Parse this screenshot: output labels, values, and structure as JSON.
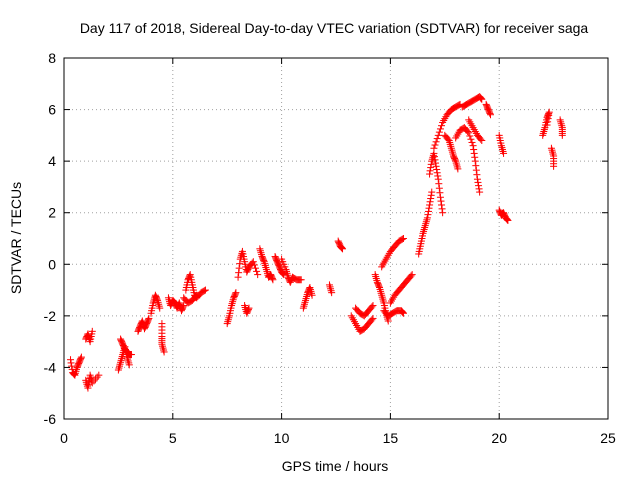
{
  "chart_data": {
    "type": "scatter",
    "title": "Day 117 of 2018, Sidereal Day-to-day VTEC variation (SDTVAR) for receiver saga",
    "xlabel": "GPS time / hours",
    "ylabel": "SDTVAR / TECUs",
    "xlim": [
      0,
      25
    ],
    "ylim": [
      -6,
      8
    ],
    "xticks": [
      "0",
      "5",
      "10",
      "15",
      "20",
      "25"
    ],
    "yticks": [
      "-6",
      "-4",
      "-2",
      "0",
      "2",
      "4",
      "6",
      "8"
    ],
    "grid": true,
    "marker": "+",
    "color": "#ff0000",
    "series": [
      {
        "name": "",
        "segments": [
          [
            [
              0.3,
              -3.7
            ],
            [
              0.4,
              -4.2
            ],
            [
              0.5,
              -4.3
            ],
            [
              0.6,
              -4.0
            ],
            [
              0.7,
              -3.8
            ],
            [
              0.8,
              -3.6
            ]
          ],
          [
            [
              1.0,
              -2.9
            ],
            [
              1.1,
              -2.7
            ],
            [
              1.2,
              -3.0
            ],
            [
              1.3,
              -2.6
            ]
          ],
          [
            [
              1.0,
              -4.5
            ],
            [
              1.1,
              -4.8
            ],
            [
              1.2,
              -4.3
            ],
            [
              1.3,
              -4.6
            ],
            [
              1.6,
              -4.3
            ]
          ],
          [
            [
              2.5,
              -4.1
            ],
            [
              2.6,
              -3.8
            ],
            [
              2.7,
              -3.5
            ],
            [
              2.8,
              -3.2
            ],
            [
              2.9,
              -3.6
            ],
            [
              3.0,
              -3.9
            ]
          ],
          [
            [
              2.6,
              -2.9
            ],
            [
              2.7,
              -3.1
            ],
            [
              2.8,
              -3.3
            ],
            [
              2.9,
              -3.4
            ],
            [
              3.0,
              -3.5
            ],
            [
              3.1,
              -3.5
            ]
          ],
          [
            [
              3.4,
              -2.6
            ],
            [
              3.5,
              -2.4
            ],
            [
              3.6,
              -2.2
            ],
            [
              3.7,
              -2.5
            ],
            [
              3.8,
              -2.3
            ],
            [
              3.9,
              -2.1
            ]
          ],
          [
            [
              4.0,
              -1.9
            ],
            [
              4.1,
              -1.5
            ],
            [
              4.2,
              -1.2
            ],
            [
              4.3,
              -1.4
            ],
            [
              4.4,
              -1.7
            ]
          ],
          [
            [
              4.5,
              -2.3
            ],
            [
              4.5,
              -2.8
            ],
            [
              4.5,
              -3.1
            ],
            [
              4.6,
              -3.4
            ]
          ],
          [
            [
              4.8,
              -1.3
            ],
            [
              4.9,
              -1.6
            ],
            [
              5.0,
              -1.4
            ],
            [
              5.1,
              -1.5
            ],
            [
              5.2,
              -1.7
            ],
            [
              5.3,
              -1.5
            ],
            [
              5.4,
              -1.8
            ],
            [
              5.5,
              -1.6
            ]
          ],
          [
            [
              5.6,
              -1.0
            ],
            [
              5.7,
              -0.6
            ],
            [
              5.8,
              -0.4
            ],
            [
              5.9,
              -0.8
            ],
            [
              6.0,
              -1.2
            ],
            [
              6.1,
              -1.3
            ],
            [
              6.3,
              -1.1
            ],
            [
              6.5,
              -1.0
            ]
          ],
          [
            [
              5.5,
              -1.3
            ],
            [
              5.7,
              -1.5
            ],
            [
              5.9,
              -1.4
            ],
            [
              6.1,
              -1.2
            ]
          ],
          [
            [
              7.5,
              -2.3
            ],
            [
              7.6,
              -2.0
            ],
            [
              7.7,
              -1.6
            ],
            [
              7.8,
              -1.3
            ],
            [
              7.9,
              -1.1
            ]
          ],
          [
            [
              8.0,
              -0.5
            ],
            [
              8.1,
              0.2
            ],
            [
              8.2,
              0.5
            ],
            [
              8.3,
              0.1
            ],
            [
              8.4,
              -0.3
            ],
            [
              8.5,
              -0.1
            ],
            [
              8.7,
              0.1
            ],
            [
              8.9,
              -0.4
            ]
          ],
          [
            [
              8.3,
              -1.6
            ],
            [
              8.4,
              -1.9
            ],
            [
              8.5,
              -1.7
            ]
          ],
          [
            [
              9.0,
              0.6
            ],
            [
              9.1,
              0.3
            ],
            [
              9.2,
              0.1
            ],
            [
              9.3,
              -0.2
            ],
            [
              9.4,
              -0.5
            ],
            [
              9.5,
              -0.4
            ],
            [
              9.6,
              -0.6
            ]
          ],
          [
            [
              9.7,
              0.3
            ],
            [
              9.8,
              0.1
            ],
            [
              9.9,
              -0.1
            ],
            [
              10.0,
              -0.3
            ],
            [
              10.1,
              -0.4
            ]
          ],
          [
            [
              10.0,
              0.2
            ],
            [
              10.2,
              -0.2
            ],
            [
              10.3,
              -0.5
            ],
            [
              10.4,
              -0.7
            ],
            [
              10.5,
              -0.5
            ],
            [
              10.7,
              -0.6
            ],
            [
              10.9,
              -0.6
            ]
          ],
          [
            [
              11.0,
              -1.7
            ],
            [
              11.1,
              -1.4
            ],
            [
              11.2,
              -1.1
            ],
            [
              11.3,
              -0.9
            ],
            [
              11.4,
              -1.2
            ]
          ],
          [
            [
              12.2,
              -0.8
            ],
            [
              12.3,
              -1.1
            ]
          ],
          [
            [
              12.6,
              0.9
            ],
            [
              12.7,
              0.7
            ],
            [
              12.8,
              0.6
            ]
          ],
          [
            [
              13.2,
              -2.0
            ],
            [
              13.4,
              -2.3
            ],
            [
              13.6,
              -2.6
            ],
            [
              13.8,
              -2.5
            ],
            [
              14.0,
              -2.3
            ],
            [
              14.2,
              -2.1
            ]
          ],
          [
            [
              13.4,
              -1.7
            ],
            [
              13.6,
              -1.9
            ],
            [
              13.8,
              -2.0
            ],
            [
              14.0,
              -1.8
            ],
            [
              14.2,
              -1.6
            ]
          ],
          [
            [
              14.3,
              -0.4
            ],
            [
              14.4,
              -0.7
            ],
            [
              14.5,
              -0.9
            ],
            [
              14.6,
              -1.2
            ],
            [
              14.7,
              -1.5
            ],
            [
              14.8,
              -1.9
            ],
            [
              14.9,
              -2.2
            ]
          ],
          [
            [
              14.6,
              -0.1
            ],
            [
              14.8,
              0.2
            ],
            [
              15.0,
              0.5
            ],
            [
              15.2,
              0.7
            ],
            [
              15.4,
              0.9
            ],
            [
              15.6,
              1.0
            ]
          ],
          [
            [
              14.7,
              -1.8
            ],
            [
              14.9,
              -2.0
            ],
            [
              15.1,
              -1.9
            ],
            [
              15.3,
              -1.8
            ],
            [
              15.5,
              -1.8
            ],
            [
              15.6,
              -1.9
            ]
          ],
          [
            [
              15.0,
              -1.5
            ],
            [
              15.2,
              -1.2
            ],
            [
              15.4,
              -1.0
            ],
            [
              15.6,
              -0.8
            ],
            [
              15.8,
              -0.6
            ],
            [
              16.0,
              -0.4
            ]
          ],
          [
            [
              16.3,
              0.4
            ],
            [
              16.4,
              0.8
            ],
            [
              16.5,
              1.2
            ],
            [
              16.6,
              1.5
            ],
            [
              16.7,
              1.8
            ],
            [
              16.8,
              2.3
            ],
            [
              16.9,
              2.8
            ]
          ],
          [
            [
              16.8,
              3.5
            ],
            [
              16.9,
              4.0
            ],
            [
              17.0,
              4.3
            ],
            [
              17.1,
              3.8
            ],
            [
              17.2,
              3.3
            ],
            [
              17.3,
              2.6
            ],
            [
              17.4,
              2.0
            ]
          ],
          [
            [
              17.0,
              4.5
            ],
            [
              17.2,
              5.0
            ],
            [
              17.4,
              5.5
            ],
            [
              17.6,
              5.8
            ],
            [
              17.8,
              6.0
            ],
            [
              18.0,
              6.1
            ],
            [
              18.2,
              6.2
            ]
          ],
          [
            [
              17.5,
              5.0
            ],
            [
              17.7,
              4.8
            ],
            [
              17.8,
              4.5
            ],
            [
              17.9,
              4.2
            ],
            [
              18.0,
              4.0
            ],
            [
              18.1,
              3.7
            ]
          ],
          [
            [
              18.0,
              4.9
            ],
            [
              18.2,
              5.2
            ],
            [
              18.4,
              5.3
            ],
            [
              18.6,
              5.1
            ],
            [
              18.8,
              4.6
            ],
            [
              18.9,
              4.0
            ],
            [
              19.0,
              3.3
            ],
            [
              19.1,
              2.8
            ]
          ],
          [
            [
              18.3,
              6.1
            ],
            [
              18.5,
              6.2
            ],
            [
              18.7,
              6.3
            ],
            [
              18.9,
              6.4
            ],
            [
              19.1,
              6.5
            ],
            [
              19.2,
              6.4
            ]
          ],
          [
            [
              18.6,
              5.6
            ],
            [
              18.8,
              5.3
            ],
            [
              19.0,
              5.0
            ],
            [
              19.2,
              4.8
            ]
          ],
          [
            [
              19.4,
              6.2
            ],
            [
              19.5,
              6.0
            ],
            [
              19.6,
              5.8
            ]
          ],
          [
            [
              20.0,
              5.0
            ],
            [
              20.1,
              4.6
            ],
            [
              20.2,
              4.3
            ]
          ],
          [
            [
              20.0,
              2.1
            ],
            [
              20.1,
              1.9
            ],
            [
              20.2,
              2.0
            ],
            [
              20.3,
              1.8
            ],
            [
              20.4,
              1.7
            ]
          ],
          [
            [
              22.0,
              5.0
            ],
            [
              22.1,
              5.3
            ],
            [
              22.2,
              5.7
            ],
            [
              22.3,
              5.9
            ],
            [
              22.2,
              5.4
            ]
          ],
          [
            [
              22.4,
              4.5
            ],
            [
              22.5,
              4.2
            ],
            [
              22.5,
              3.8
            ]
          ],
          [
            [
              22.8,
              5.6
            ],
            [
              22.9,
              5.3
            ],
            [
              22.9,
              5.0
            ]
          ]
        ]
      }
    ]
  }
}
